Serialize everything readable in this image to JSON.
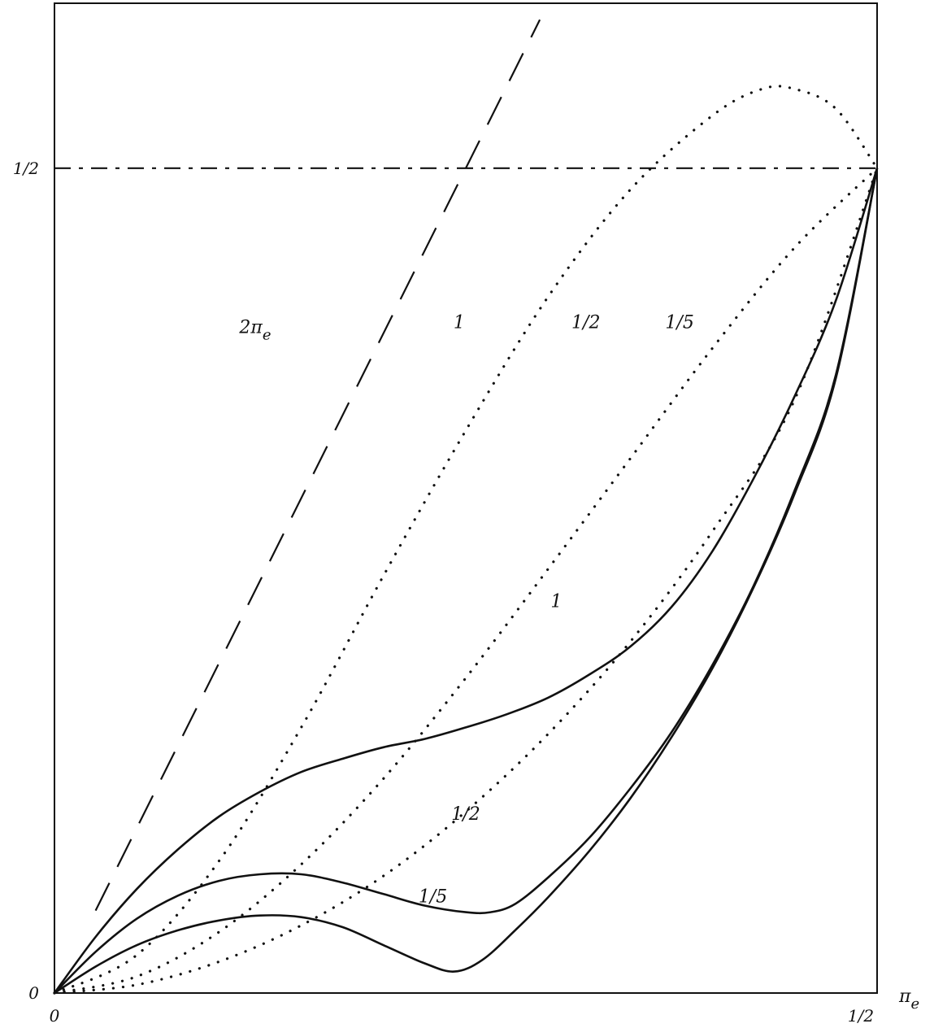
{
  "chart_data": {
    "type": "line",
    "title": "",
    "xlabel": "π_e",
    "ylabel": "",
    "xlim": [
      0,
      0.5
    ],
    "ylim": [
      0,
      0.6
    ],
    "grid": false,
    "x_ticks": [
      {
        "value": 0,
        "label": "0"
      },
      {
        "value": 0.5,
        "label": "1/2"
      }
    ],
    "y_ticks": [
      {
        "value": 0,
        "label": "0"
      },
      {
        "value": 0.5,
        "label": "1/2"
      }
    ],
    "reference_lines": [
      {
        "name": "half",
        "style": "dash-dot",
        "points": [
          [
            0,
            0.5
          ],
          [
            0.5,
            0.5
          ]
        ]
      },
      {
        "name": "2π_e",
        "label_text": "2π",
        "label_sub": "e",
        "label_at": [
          0.122,
          0.4
        ],
        "style": "long-dash",
        "points": [
          [
            0.025,
            0.05
          ],
          [
            0.15,
            0.3
          ],
          [
            0.295,
            0.59
          ]
        ]
      }
    ],
    "series": [
      {
        "name": "1",
        "style": "solid",
        "label_at": [
          0.305,
          0.234
        ],
        "points": [
          [
            0,
            0
          ],
          [
            0.025,
            0.034
          ],
          [
            0.05,
            0.063
          ],
          [
            0.075,
            0.087
          ],
          [
            0.1,
            0.107
          ],
          [
            0.125,
            0.122
          ],
          [
            0.15,
            0.134
          ],
          [
            0.175,
            0.142
          ],
          [
            0.2,
            0.149
          ],
          [
            0.225,
            0.154
          ],
          [
            0.25,
            0.161
          ],
          [
            0.275,
            0.169
          ],
          [
            0.3,
            0.179
          ],
          [
            0.325,
            0.193
          ],
          [
            0.35,
            0.21
          ],
          [
            0.375,
            0.234
          ],
          [
            0.4,
            0.268
          ],
          [
            0.425,
            0.312
          ],
          [
            0.45,
            0.362
          ],
          [
            0.475,
            0.42
          ],
          [
            0.5,
            0.5
          ]
        ]
      },
      {
        "name": "1/2",
        "style": "solid",
        "label_at": [
          0.25,
          0.105
        ],
        "points": [
          [
            0,
            0
          ],
          [
            0.025,
            0.025
          ],
          [
            0.05,
            0.045
          ],
          [
            0.075,
            0.059
          ],
          [
            0.1,
            0.068
          ],
          [
            0.125,
            0.072
          ],
          [
            0.15,
            0.072
          ],
          [
            0.175,
            0.067
          ],
          [
            0.2,
            0.06
          ],
          [
            0.225,
            0.053
          ],
          [
            0.25,
            0.049
          ],
          [
            0.265,
            0.049
          ],
          [
            0.28,
            0.054
          ],
          [
            0.3,
            0.07
          ],
          [
            0.325,
            0.094
          ],
          [
            0.35,
            0.124
          ],
          [
            0.375,
            0.158
          ],
          [
            0.4,
            0.199
          ],
          [
            0.425,
            0.247
          ],
          [
            0.45,
            0.305
          ],
          [
            0.475,
            0.375
          ],
          [
            0.5,
            0.5
          ]
        ]
      },
      {
        "name": "1/5",
        "style": "solid",
        "label_at": [
          0.23,
          0.055
        ],
        "points": [
          [
            0,
            0
          ],
          [
            0.025,
            0.016
          ],
          [
            0.05,
            0.029
          ],
          [
            0.075,
            0.038
          ],
          [
            0.1,
            0.044
          ],
          [
            0.125,
            0.047
          ],
          [
            0.15,
            0.046
          ],
          [
            0.175,
            0.04
          ],
          [
            0.2,
            0.029
          ],
          [
            0.225,
            0.018
          ],
          [
            0.243,
            0.013
          ],
          [
            0.26,
            0.02
          ],
          [
            0.28,
            0.038
          ],
          [
            0.3,
            0.058
          ],
          [
            0.325,
            0.086
          ],
          [
            0.35,
            0.118
          ],
          [
            0.375,
            0.155
          ],
          [
            0.4,
            0.197
          ],
          [
            0.425,
            0.246
          ],
          [
            0.45,
            0.303
          ],
          [
            0.475,
            0.373
          ],
          [
            0.5,
            0.5
          ]
        ]
      },
      {
        "name": "1",
        "style": "dotted",
        "label_at": [
          0.246,
          0.403
        ],
        "points": [
          [
            0,
            0
          ],
          [
            0.05,
            0.023
          ],
          [
            0.1,
            0.08
          ],
          [
            0.15,
            0.161
          ],
          [
            0.2,
            0.253
          ],
          [
            0.25,
            0.341
          ],
          [
            0.3,
            0.422
          ],
          [
            0.35,
            0.487
          ],
          [
            0.4,
            0.532
          ],
          [
            0.43,
            0.548
          ],
          [
            0.45,
            0.548
          ],
          [
            0.475,
            0.536
          ],
          [
            0.5,
            0.5
          ]
        ]
      },
      {
        "name": "1/2",
        "style": "dotted",
        "label_at": [
          0.323,
          0.403
        ],
        "points": [
          [
            0,
            0
          ],
          [
            0.05,
            0.01
          ],
          [
            0.1,
            0.037
          ],
          [
            0.15,
            0.078
          ],
          [
            0.2,
            0.13
          ],
          [
            0.25,
            0.191
          ],
          [
            0.3,
            0.257
          ],
          [
            0.35,
            0.324
          ],
          [
            0.4,
            0.391
          ],
          [
            0.45,
            0.452
          ],
          [
            0.5,
            0.5
          ]
        ]
      },
      {
        "name": "1/5",
        "style": "dotted",
        "label_at": [
          0.38,
          0.403
        ],
        "points": [
          [
            0,
            0
          ],
          [
            0.05,
            0.005
          ],
          [
            0.1,
            0.019
          ],
          [
            0.15,
            0.041
          ],
          [
            0.2,
            0.071
          ],
          [
            0.25,
            0.11
          ],
          [
            0.3,
            0.157
          ],
          [
            0.35,
            0.213
          ],
          [
            0.4,
            0.28
          ],
          [
            0.45,
            0.36
          ],
          [
            0.5,
            0.5
          ]
        ]
      }
    ]
  }
}
